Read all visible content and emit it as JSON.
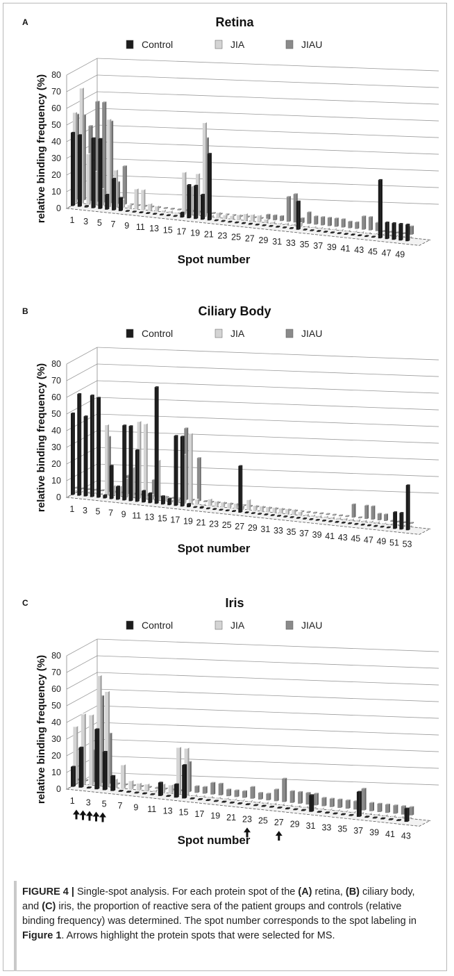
{
  "chart_data": [
    {
      "type": "bar",
      "panel_letter": "A",
      "title": "Retina",
      "xlabel": "Spot number",
      "ylabel": "relative binding frequency (%)",
      "ylim": [
        0,
        80
      ],
      "yticks": [
        0,
        10,
        20,
        30,
        40,
        50,
        60,
        70,
        80
      ],
      "x_tick_labels": [
        "1",
        "3",
        "5",
        "7",
        "9",
        "11",
        "13",
        "15",
        "17",
        "19",
        "21",
        "23",
        "25",
        "27",
        "29",
        "31",
        "33",
        "35",
        "37",
        "39",
        "41",
        "43",
        "45",
        "47",
        "49"
      ],
      "legend": [
        "Control",
        "JIA",
        "JIAU"
      ],
      "series": [
        {
          "name": "Control",
          "color": "#1c1c1c",
          "values": [
            44,
            43,
            1,
            42,
            42,
            9,
            19,
            8,
            0,
            0,
            0,
            0,
            0,
            0,
            0,
            0,
            3,
            20,
            20,
            15,
            40,
            0,
            0,
            0,
            0,
            0,
            0,
            0,
            0,
            0,
            0,
            0,
            0,
            17,
            0,
            0,
            0,
            0,
            0,
            0,
            0,
            0,
            0,
            0,
            0,
            35,
            10,
            10,
            10,
            10
          ]
        },
        {
          "name": "JIA",
          "color": "#d4d4d4",
          "values": [
            54,
            69,
            30,
            20,
            10,
            52,
            22,
            5,
            2,
            12,
            12,
            4,
            3,
            1,
            1,
            0,
            25,
            17,
            25,
            56,
            1,
            3,
            2,
            2,
            3,
            4,
            4,
            4,
            2,
            1,
            0,
            1,
            1,
            2,
            0,
            0,
            0,
            0,
            0,
            0,
            0,
            0,
            0,
            0,
            0,
            0,
            0,
            0,
            0,
            0
          ]
        },
        {
          "name": "JIAU",
          "color": "#8a8a8a",
          "values": [
            51,
            51,
            45,
            60,
            60,
            49,
            13,
            23,
            0,
            0,
            0,
            0,
            0,
            0,
            0,
            0,
            0,
            0,
            0,
            45,
            0,
            0,
            0,
            0,
            0,
            0,
            0,
            0,
            3,
            3,
            3,
            15,
            17,
            3,
            7,
            5,
            5,
            5,
            5,
            5,
            4,
            4,
            8,
            8,
            5,
            0,
            0,
            0,
            0,
            5
          ]
        }
      ]
    },
    {
      "type": "bar",
      "panel_letter": "B",
      "title": "Ciliary Body",
      "xlabel": "Spot number",
      "ylabel": "relative binding frequency (%)",
      "ylim": [
        0,
        80
      ],
      "yticks": [
        0,
        10,
        20,
        30,
        40,
        50,
        60,
        70,
        80
      ],
      "x_tick_labels": [
        "1",
        "3",
        "5",
        "7",
        "9",
        "11",
        "13",
        "15",
        "17",
        "19",
        "21",
        "23",
        "25",
        "27",
        "29",
        "31",
        "33",
        "35",
        "37",
        "39",
        "41",
        "43",
        "45",
        "47",
        "49",
        "51",
        "53"
      ],
      "legend": [
        "Control",
        "JIA",
        "JIAU"
      ],
      "series": [
        {
          "name": "Control",
          "color": "#1c1c1c",
          "values": [
            49,
            61,
            48,
            61,
            60,
            2,
            20,
            8,
            45,
            45,
            31,
            7,
            6,
            70,
            5,
            4,
            42,
            42,
            2,
            0,
            1,
            0,
            0,
            0,
            0,
            0,
            28,
            0,
            0,
            0,
            0,
            0,
            0,
            0,
            0,
            0,
            0,
            0,
            0,
            0,
            0,
            0,
            0,
            0,
            0,
            0,
            0,
            0,
            0,
            0,
            10,
            10,
            27
          ]
        },
        {
          "name": "JIA",
          "color": "#d4d4d4",
          "values": [
            0,
            0,
            0,
            0,
            0,
            42,
            6,
            6,
            11,
            18,
            46,
            45,
            3,
            24,
            3,
            1,
            2,
            29,
            42,
            3,
            0,
            4,
            3,
            3,
            3,
            3,
            2,
            6,
            3,
            3,
            3,
            3,
            3,
            3,
            3,
            2,
            1,
            1,
            1,
            1,
            1,
            1,
            1,
            1,
            1,
            1,
            1,
            1,
            0,
            0,
            0,
            0,
            0
          ]
        },
        {
          "name": "JIAU",
          "color": "#8a8a8a",
          "values": [
            0,
            0,
            0,
            0,
            0,
            33,
            0,
            0,
            11,
            0,
            0,
            0,
            10,
            0,
            0,
            0,
            0,
            43,
            0,
            26,
            0,
            0,
            0,
            0,
            0,
            0,
            0,
            0,
            0,
            0,
            0,
            0,
            0,
            0,
            0,
            0,
            0,
            0,
            0,
            0,
            0,
            0,
            0,
            8,
            0,
            8,
            8,
            4,
            4,
            0,
            0,
            0,
            0
          ]
        }
      ]
    },
    {
      "type": "bar",
      "panel_letter": "C",
      "title": "Iris",
      "xlabel": "Spot number",
      "ylabel": "relative binding frequency (%)",
      "ylim": [
        0,
        80
      ],
      "yticks": [
        0,
        10,
        20,
        30,
        40,
        50,
        60,
        70,
        80
      ],
      "x_tick_labels": [
        "1",
        "3",
        "5",
        "7",
        "9",
        "11",
        "13",
        "15",
        "17",
        "19",
        "21",
        "23",
        "25",
        "27",
        "29",
        "31",
        "33",
        "35",
        "37",
        "39",
        "41",
        "43"
      ],
      "legend": [
        "Control",
        "JIA",
        "JIAU"
      ],
      "arrows_at_spots": [
        1,
        2,
        3,
        4,
        5,
        23,
        27
      ],
      "series": [
        {
          "name": "Control",
          "color": "#1c1c1c",
          "values": [
            12,
            24,
            0,
            36,
            23,
            9,
            0,
            0,
            0,
            0,
            0,
            8,
            0,
            8,
            20,
            0,
            0,
            0,
            0,
            0,
            0,
            0,
            0,
            0,
            0,
            0,
            0,
            0,
            0,
            0,
            10,
            0,
            0,
            0,
            0,
            0,
            15,
            0,
            0,
            0,
            0,
            0,
            8
          ]
        },
        {
          "name": "JIA",
          "color": "#d4d4d4",
          "values": [
            34,
            42,
            42,
            66,
            57,
            5,
            14,
            5,
            4,
            4,
            1,
            5,
            5,
            28,
            28,
            0,
            0,
            0,
            0,
            0,
            0,
            0,
            0,
            0,
            0,
            0,
            0,
            0,
            0,
            0,
            0,
            0,
            0,
            0,
            0,
            0,
            0,
            0,
            0,
            0,
            0,
            0,
            0
          ]
        },
        {
          "name": "JIAU",
          "color": "#8a8a8a",
          "values": [
            0,
            0,
            19,
            52,
            30,
            0,
            0,
            0,
            0,
            0,
            0,
            0,
            0,
            0,
            18,
            4,
            4,
            7,
            7,
            4,
            4,
            4,
            7,
            4,
            4,
            7,
            14,
            7,
            7,
            7,
            7,
            5,
            5,
            5,
            5,
            5,
            13,
            5,
            5,
            5,
            5,
            5,
            5
          ]
        }
      ]
    }
  ],
  "caption": {
    "label": "FIGURE 4 |",
    "pre": " Single-spot analysis. For each protein spot of the ",
    "a": "(A)",
    "mid1": " retina, ",
    "b": "(B)",
    "mid2": " ciliary body, and ",
    "c": "(C)",
    "mid3": " iris, the proportion of reactive sera of the patient groups and controls (relative binding frequency) was determined. The spot number corresponds to the spot labeling in ",
    "fig1": "Figure 1",
    "post": ". Arrows highlight the protein spots that were selected for MS."
  }
}
